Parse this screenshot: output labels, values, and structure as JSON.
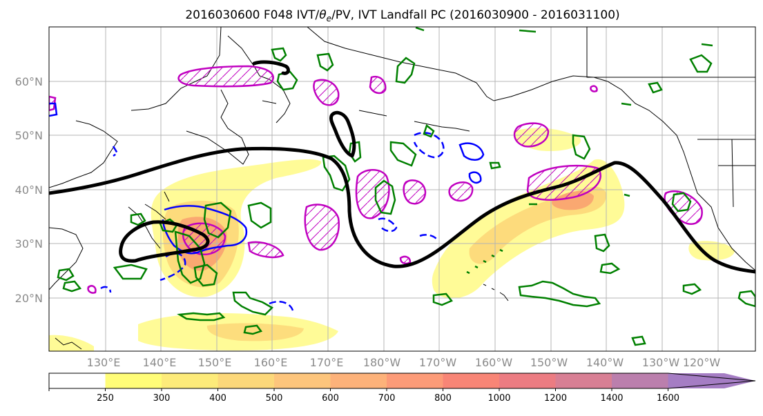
{
  "title": "2016030600 F048 IVT/θe/PV, IVT Landfall PC (2016030900 - 2016031100)",
  "title_parts": {
    "prefix": "2016030600 F048 IVT/",
    "theta": "θ",
    "sub": "e",
    "suffix": "/PV, IVT Landfall PC (2016030900 - 2016031100)"
  },
  "map": {
    "lat_labels": [
      "60°N",
      "50°N",
      "40°N",
      "30°N",
      "20°N"
    ],
    "lon_labels": [
      "130°E",
      "140°E",
      "150°E",
      "160°E",
      "170°E",
      "180°W",
      "170°W",
      "160°W",
      "150°W",
      "140°W",
      "130°W",
      "120°W"
    ],
    "gridlines": true,
    "colors": {
      "landfall_pc": "#000000",
      "theta_e": "#0000ff",
      "pv": "#c000c0",
      "ivt_contour": "#008000",
      "coastline": "#000000"
    }
  },
  "colorbar": {
    "levels": [
      "250",
      "300",
      "400",
      "500",
      "600",
      "700",
      "800",
      "1000",
      "1200",
      "1400",
      "1600"
    ],
    "colors": [
      "#ffffff",
      "#fffd78",
      "#fdeb7a",
      "#fcd87a",
      "#fdc57c",
      "#fdb27a",
      "#fc9b78",
      "#f88576",
      "#ec7c82",
      "#d87f94",
      "#bb7fad",
      "#a57dc4"
    ],
    "extend": "max"
  }
}
